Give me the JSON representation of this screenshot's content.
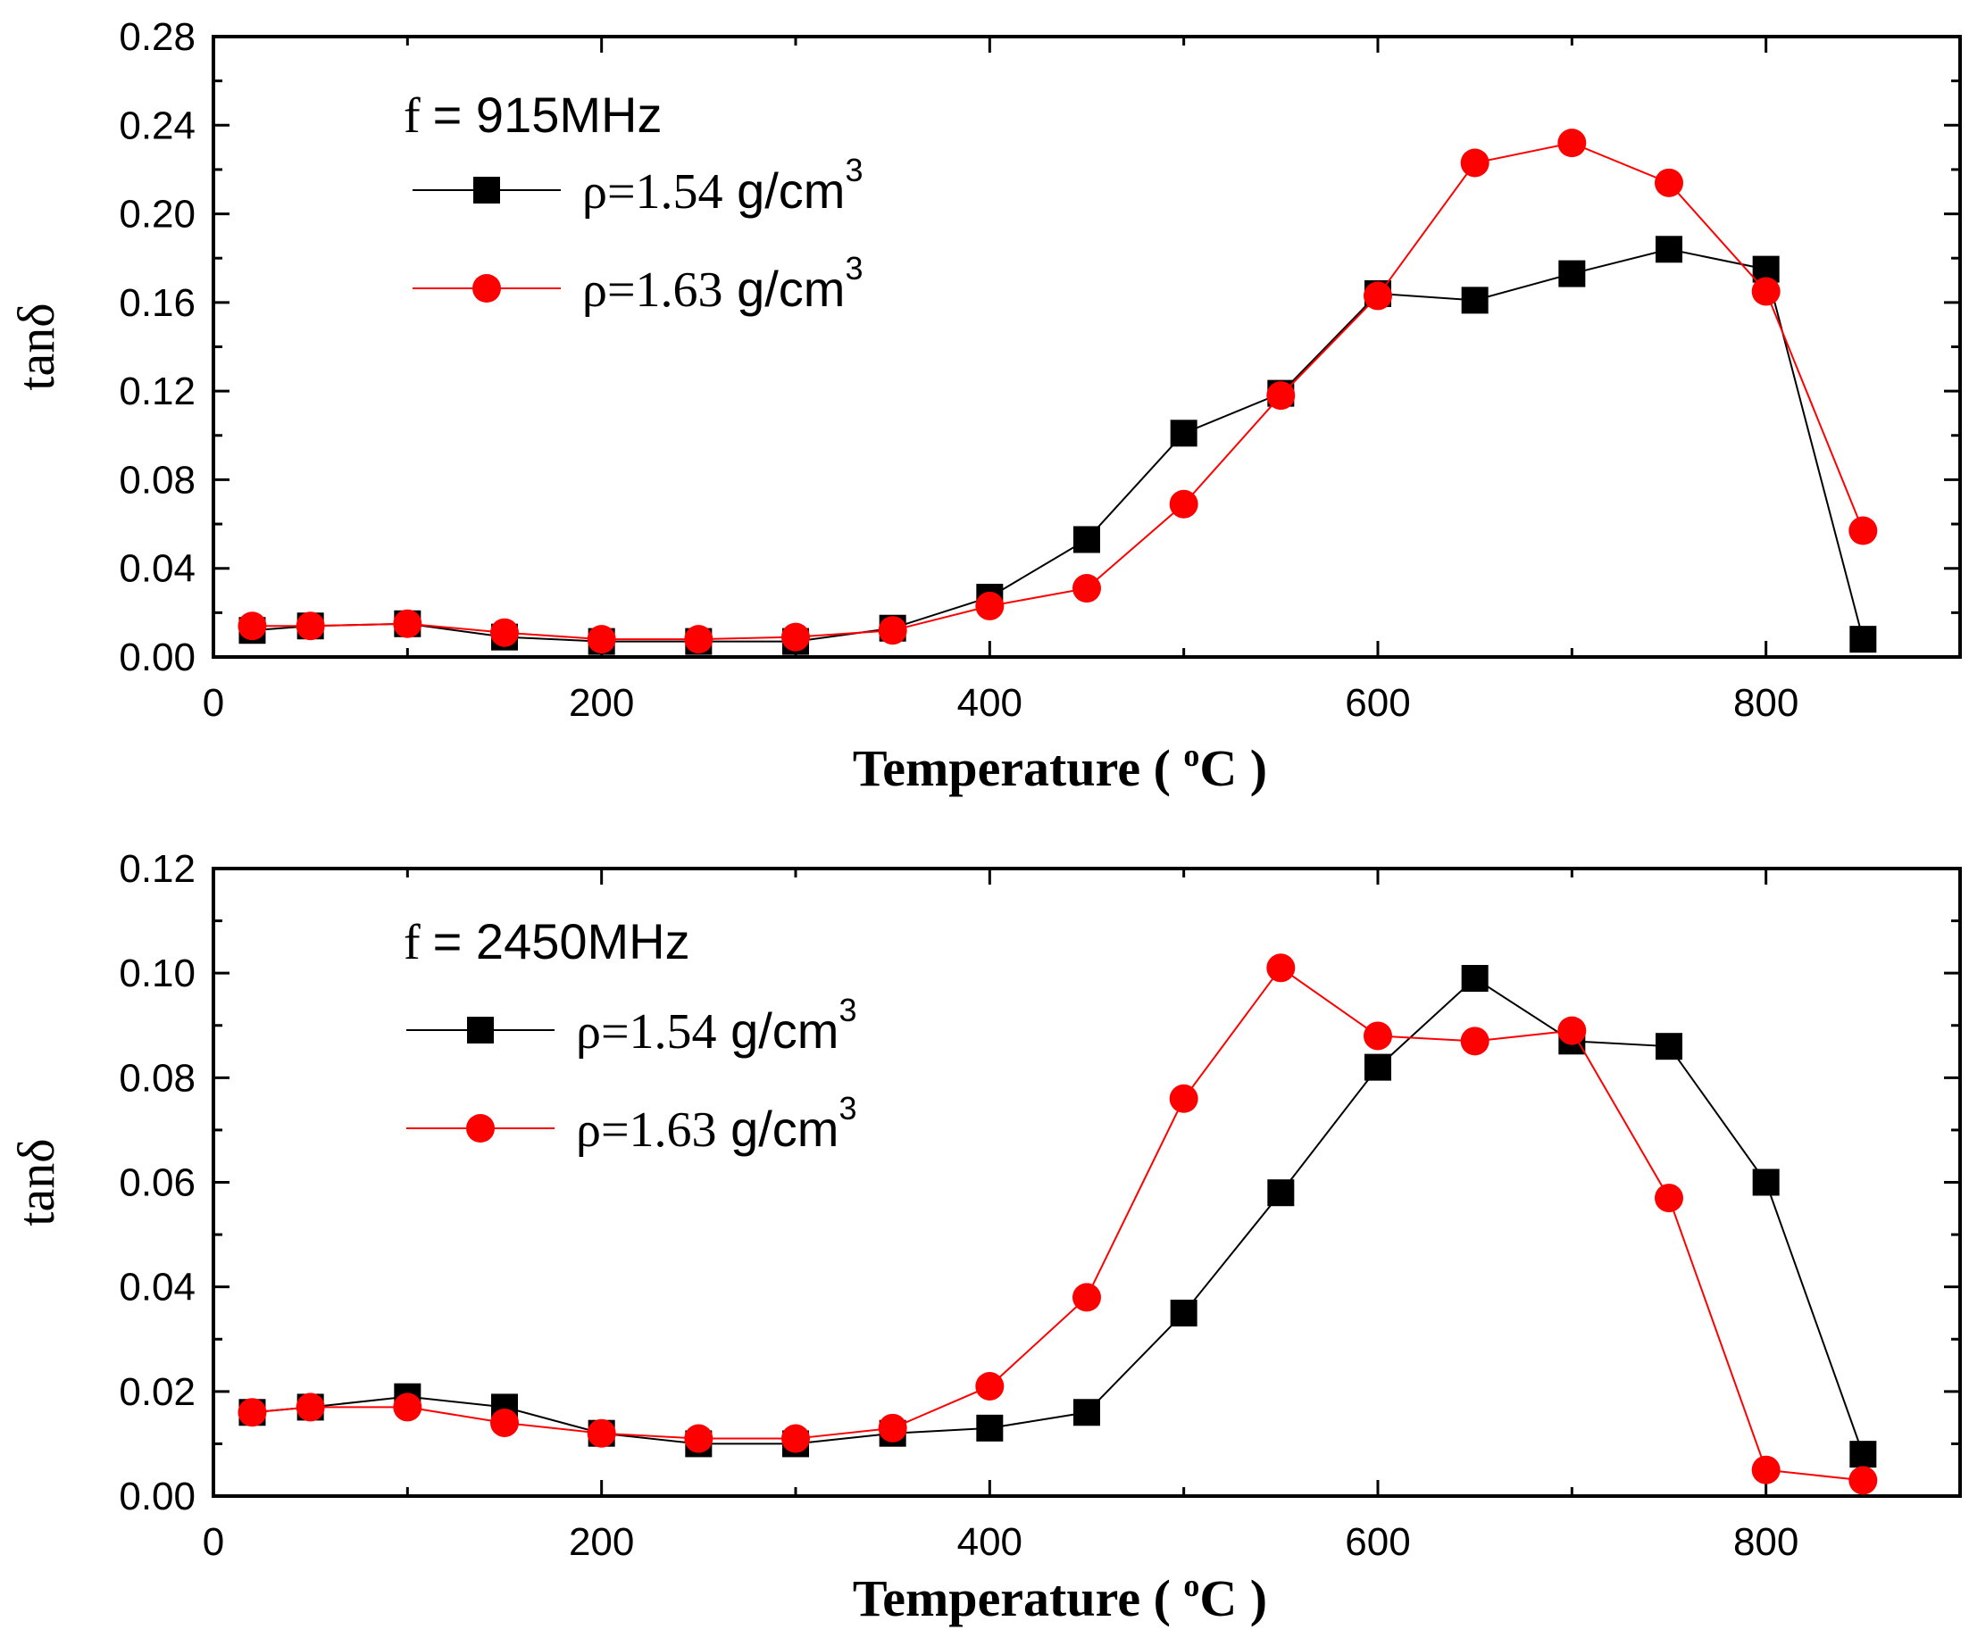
{
  "chart_data": [
    {
      "type": "line",
      "annotation": "f = 915MHz",
      "xlabel": "Temperature ( °C )",
      "xlabel_parts": {
        "text": "Temperature ( ",
        "superscript": "o",
        "unit": "C )"
      },
      "ylabel": "tanδ",
      "xlim": [
        0,
        900
      ],
      "ylim": [
        0,
        0.28
      ],
      "x_ticks": [
        "0",
        "200",
        "400",
        "600",
        "800"
      ],
      "y_ticks": [
        "0.00",
        "0.04",
        "0.08",
        "0.12",
        "0.16",
        "0.20",
        "0.24",
        "0.28"
      ],
      "x": [
        20,
        50,
        100,
        150,
        200,
        250,
        300,
        350,
        400,
        450,
        500,
        550,
        600,
        650,
        700,
        750,
        800,
        850
      ],
      "series": [
        {
          "name": "ρ=1.54 g/cm3",
          "name_parts": {
            "rho": "ρ=1.54",
            "unit": " g/cm",
            "superscript": "3"
          },
          "marker": "square",
          "color": "#000000",
          "values": [
            0.012,
            0.014,
            0.015,
            0.009,
            0.007,
            0.007,
            0.007,
            0.013,
            0.027,
            0.053,
            0.101,
            0.119,
            0.164,
            0.161,
            0.173,
            0.184,
            0.175,
            0.008
          ]
        },
        {
          "name": "ρ=1.63 g/cm3",
          "name_parts": {
            "rho": "ρ=1.63",
            "unit": " g/cm",
            "superscript": "3"
          },
          "marker": "circle",
          "color": "#ff0000",
          "values": [
            0.014,
            0.014,
            0.015,
            0.011,
            0.008,
            0.008,
            0.009,
            0.012,
            0.023,
            0.031,
            0.069,
            0.118,
            0.163,
            0.223,
            0.232,
            0.214,
            0.165,
            0.057
          ]
        }
      ]
    },
    {
      "type": "line",
      "annotation": "f = 2450MHz",
      "xlabel": "Temperature ( °C )",
      "xlabel_parts": {
        "text": "Temperature ( ",
        "superscript": "o",
        "unit": "C )"
      },
      "ylabel": "tanδ",
      "xlim": [
        0,
        900
      ],
      "ylim": [
        0,
        0.12
      ],
      "x_ticks": [
        "0",
        "200",
        "400",
        "600",
        "800"
      ],
      "y_ticks": [
        "0.00",
        "0.02",
        "0.04",
        "0.06",
        "0.08",
        "0.10",
        "0.12"
      ],
      "x": [
        20,
        50,
        100,
        150,
        200,
        250,
        300,
        350,
        400,
        450,
        500,
        550,
        600,
        650,
        700,
        750,
        800,
        850
      ],
      "series": [
        {
          "name": "ρ=1.54 g/cm3",
          "name_parts": {
            "rho": "ρ=1.54",
            "unit": " g/cm",
            "superscript": "3"
          },
          "marker": "square",
          "color": "#000000",
          "values": [
            0.016,
            0.017,
            0.019,
            0.017,
            0.012,
            0.01,
            0.01,
            0.012,
            0.013,
            0.016,
            0.035,
            0.058,
            0.082,
            0.099,
            0.087,
            0.086,
            0.06,
            0.008
          ]
        },
        {
          "name": "ρ=1.63 g/cm3",
          "name_parts": {
            "rho": "ρ=1.63",
            "unit": " g/cm",
            "superscript": "3"
          },
          "marker": "circle",
          "color": "#ff0000",
          "values": [
            0.016,
            0.017,
            0.017,
            0.014,
            0.012,
            0.011,
            0.011,
            0.013,
            0.021,
            0.038,
            0.076,
            0.101,
            0.088,
            0.087,
            0.089,
            0.057,
            0.005,
            0.003
          ]
        }
      ]
    }
  ]
}
